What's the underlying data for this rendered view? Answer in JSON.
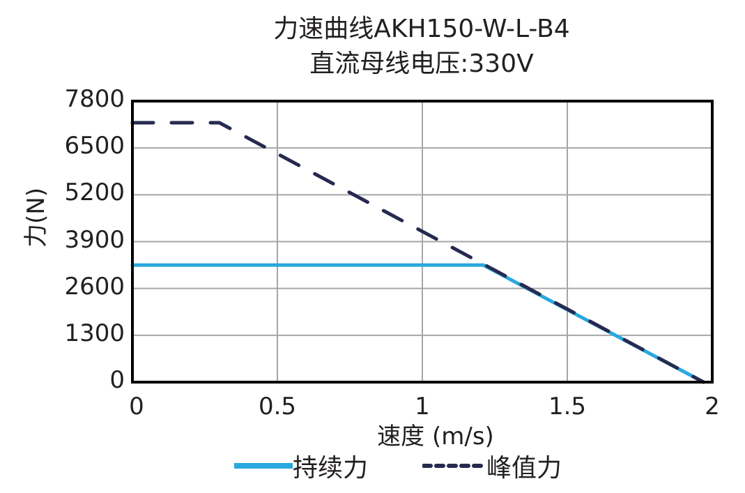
{
  "title_line1": "力速曲线AKH150-W-L-B4",
  "title_line2": "直流母线电压:330V",
  "colors": {
    "continuous": "#29a8df",
    "peak": "#262a4f",
    "grid": "#a6a6a6",
    "frame": "#000000"
  },
  "axes": {
    "xlabel": "速度 (m/s)",
    "ylabel": "力(N)",
    "xticks": [
      "0",
      "0.5",
      "1",
      "1.5",
      "2"
    ],
    "yticks": [
      "7800",
      "6500",
      "5200",
      "3900",
      "2600",
      "1300",
      "0"
    ]
  },
  "legend": {
    "continuous_label": "持续力",
    "peak_label": "峰值力"
  },
  "chart_data": {
    "type": "line",
    "title": "力速曲线AKH150-W-L-B4 直流母线电压:330V",
    "xlabel": "速度 (m/s)",
    "ylabel": "力(N)",
    "xlim": [
      0,
      2
    ],
    "ylim": [
      0,
      7800
    ],
    "xticks": [
      0,
      0.5,
      1,
      1.5,
      2
    ],
    "yticks": [
      0,
      1300,
      2600,
      3900,
      5200,
      6500,
      7800
    ],
    "grid": true,
    "legend_position": "bottom",
    "series": [
      {
        "name": "持续力",
        "style": "solid",
        "color": "#29a8df",
        "x": [
          0,
          1.21,
          1.97
        ],
        "y": [
          3250,
          3250,
          0
        ]
      },
      {
        "name": "峰值力",
        "style": "dashed",
        "color": "#262a4f",
        "x": [
          0,
          0.3,
          1.97
        ],
        "y": [
          7200,
          7200,
          0
        ]
      }
    ]
  }
}
